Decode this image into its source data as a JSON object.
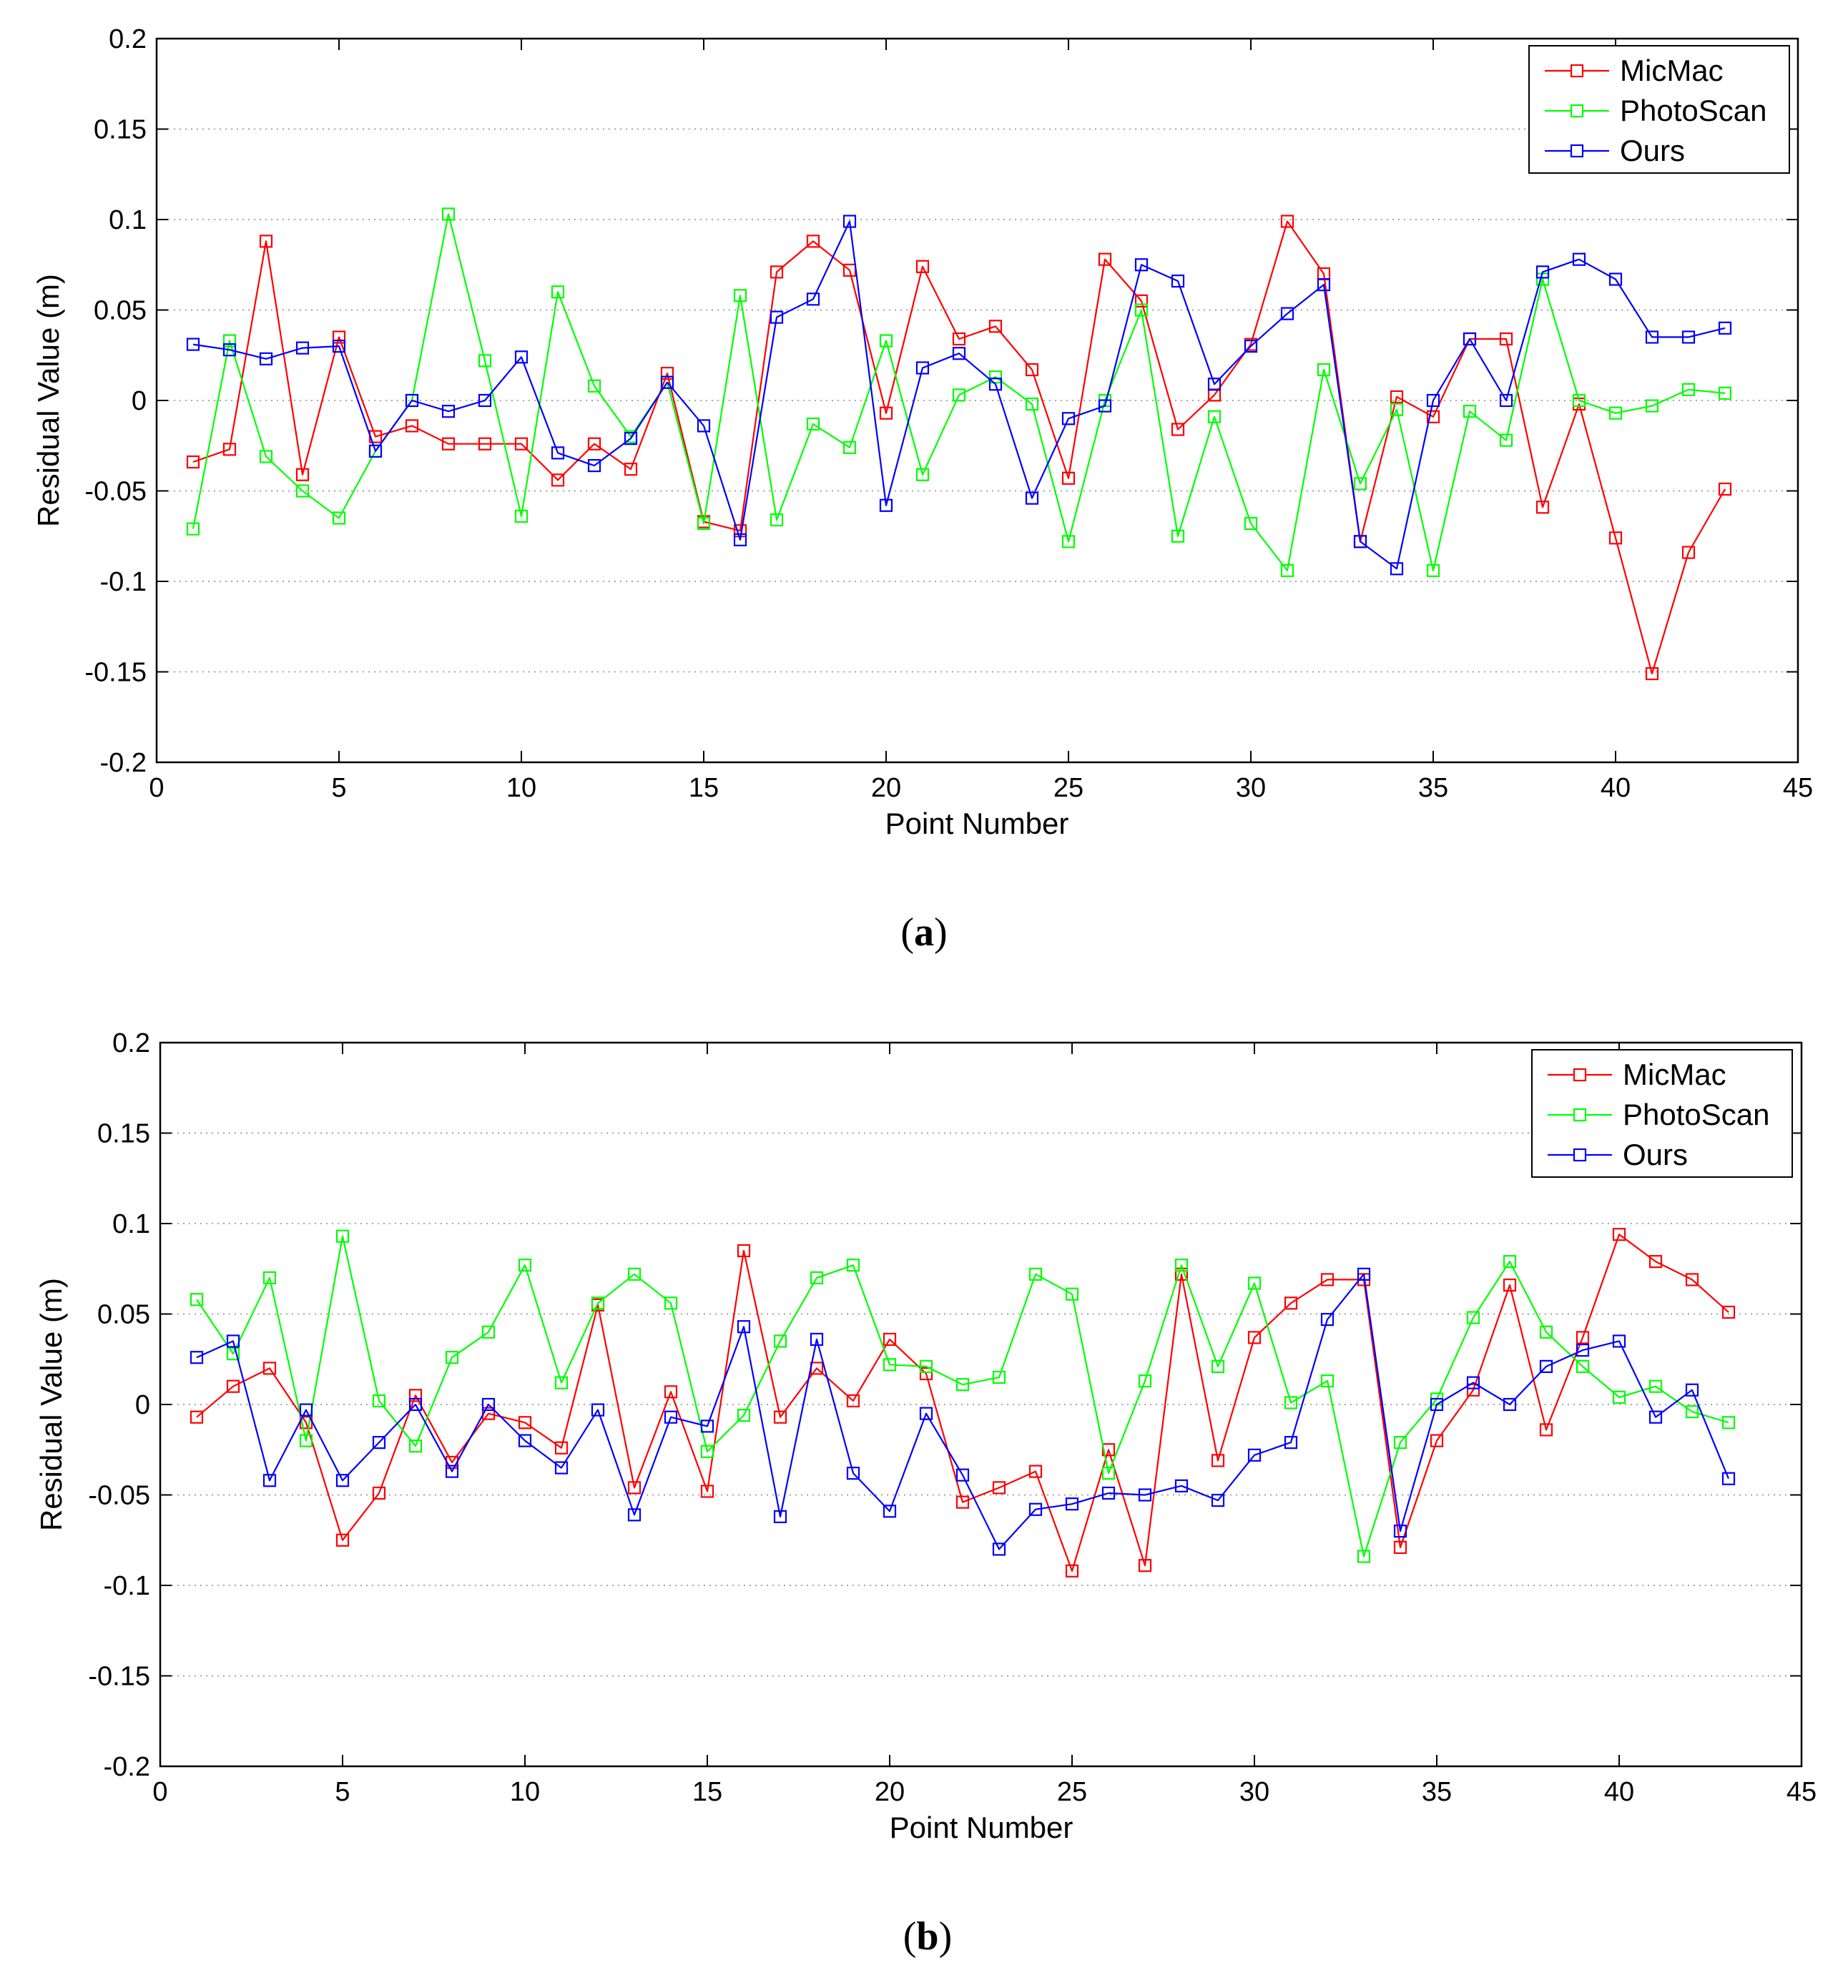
{
  "chart_data": [
    {
      "type": "line",
      "panel_label": "(a)",
      "caption_letter": "a",
      "xlabel": "Point Number",
      "ylabel": "Residual Value (m)",
      "xlim": [
        0,
        45
      ],
      "ylim": [
        -0.2,
        0.2
      ],
      "xticks": [
        0,
        5,
        10,
        15,
        20,
        25,
        30,
        35,
        40,
        45
      ],
      "yticks": [
        -0.2,
        -0.15,
        -0.1,
        -0.05,
        0,
        0.05,
        0.1,
        0.15,
        0.2
      ],
      "ytick_labels": [
        "-0.2",
        "-0.15",
        "-0.1",
        "-0.05",
        "0",
        "0.05",
        "0.1",
        "0.15",
        "0.2"
      ],
      "grid": "horizontal dotted",
      "legend_position": "top-right",
      "x": [
        1,
        2,
        3,
        4,
        5,
        6,
        7,
        8,
        9,
        10,
        11,
        12,
        13,
        14,
        15,
        16,
        17,
        18,
        19,
        20,
        21,
        22,
        23,
        24,
        25,
        26,
        27,
        28,
        29,
        30,
        31,
        32,
        33,
        34,
        35,
        36,
        37,
        38,
        39,
        40,
        41,
        42,
        43
      ],
      "series": [
        {
          "name": "MicMac",
          "color": "#ff0000",
          "values": [
            -0.034,
            -0.027,
            0.088,
            -0.041,
            0.035,
            -0.02,
            -0.014,
            -0.024,
            -0.024,
            -0.024,
            -0.044,
            -0.024,
            -0.038,
            0.015,
            -0.067,
            -0.072,
            0.071,
            0.088,
            0.072,
            -0.007,
            0.074,
            0.034,
            0.041,
            0.017,
            -0.043,
            0.078,
            0.055,
            -0.016,
            0.003,
            0.031,
            0.099,
            0.07,
            -0.078,
            0.002,
            -0.009,
            0.034,
            0.034,
            -0.059,
            -0.002,
            -0.076,
            -0.151,
            -0.084,
            -0.049
          ]
        },
        {
          "name": "PhotoScan",
          "color": "#00ff00",
          "values": [
            -0.071,
            0.033,
            -0.031,
            -0.05,
            -0.065,
            -0.028,
            0.0,
            0.103,
            0.022,
            -0.064,
            0.06,
            0.008,
            -0.02,
            0.01,
            -0.068,
            0.058,
            -0.066,
            -0.013,
            -0.026,
            0.033,
            -0.041,
            0.003,
            0.013,
            -0.002,
            -0.078,
            0.0,
            0.05,
            -0.075,
            -0.009,
            -0.068,
            -0.094,
            0.017,
            -0.046,
            -0.005,
            -0.094,
            -0.006,
            -0.022,
            0.067,
            0.0,
            -0.007,
            -0.003,
            0.006,
            0.004
          ]
        },
        {
          "name": "Ours",
          "color": "#0000ff",
          "values": [
            0.031,
            0.028,
            0.023,
            0.029,
            0.03,
            -0.028,
            0.0,
            -0.006,
            0.0,
            0.024,
            -0.029,
            -0.036,
            -0.021,
            0.01,
            -0.014,
            -0.077,
            0.046,
            0.056,
            0.099,
            -0.058,
            0.018,
            0.026,
            0.009,
            -0.054,
            -0.01,
            -0.003,
            0.075,
            0.066,
            0.009,
            0.03,
            0.048,
            0.064,
            -0.078,
            -0.093,
            0.0,
            0.034,
            0.0,
            0.071,
            0.078,
            0.067,
            0.035,
            0.035,
            0.04
          ]
        }
      ]
    },
    {
      "type": "line",
      "panel_label": "(b)",
      "caption_letter": "b",
      "xlabel": "Point Number",
      "ylabel": "Residual Value (m)",
      "xlim": [
        0,
        45
      ],
      "ylim": [
        -0.2,
        0.2
      ],
      "xticks": [
        0,
        5,
        10,
        15,
        20,
        25,
        30,
        35,
        40,
        45
      ],
      "yticks": [
        -0.2,
        -0.15,
        -0.1,
        -0.05,
        0,
        0.05,
        0.1,
        0.15,
        0.2
      ],
      "ytick_labels": [
        "-0.2",
        "-0.15",
        "-0.1",
        "-0.05",
        "0",
        "0.05",
        "0.1",
        "0.15",
        "0.2"
      ],
      "grid": "horizontal dotted",
      "legend_position": "top-right",
      "x": [
        1,
        2,
        3,
        4,
        5,
        6,
        7,
        8,
        9,
        10,
        11,
        12,
        13,
        14,
        15,
        16,
        17,
        18,
        19,
        20,
        21,
        22,
        23,
        24,
        25,
        26,
        27,
        28,
        29,
        30,
        31,
        32,
        33,
        34,
        35,
        36,
        37,
        38,
        39,
        40,
        41,
        42,
        43
      ],
      "series": [
        {
          "name": "MicMac",
          "color": "#ff0000",
          "values": [
            -0.007,
            0.01,
            0.02,
            -0.01,
            -0.075,
            -0.049,
            0.005,
            -0.032,
            -0.005,
            -0.01,
            -0.024,
            0.055,
            -0.046,
            0.007,
            -0.048,
            0.085,
            -0.007,
            0.02,
            0.002,
            0.036,
            0.017,
            -0.054,
            -0.046,
            -0.037,
            -0.092,
            -0.025,
            -0.089,
            0.072,
            -0.031,
            0.037,
            0.056,
            0.069,
            0.069,
            -0.079,
            -0.02,
            0.008,
            0.066,
            -0.014,
            0.037,
            0.094,
            0.079,
            0.069,
            0.051
          ]
        },
        {
          "name": "PhotoScan",
          "color": "#00ff00",
          "values": [
            0.058,
            0.028,
            0.07,
            -0.02,
            0.093,
            0.002,
            -0.023,
            0.026,
            0.04,
            0.077,
            0.012,
            0.056,
            0.072,
            0.056,
            -0.026,
            -0.006,
            0.035,
            0.07,
            0.077,
            0.022,
            0.021,
            0.011,
            0.015,
            0.072,
            0.061,
            -0.038,
            0.013,
            0.077,
            0.021,
            0.067,
            0.001,
            0.013,
            -0.084,
            -0.021,
            0.003,
            0.048,
            0.079,
            0.04,
            0.021,
            0.004,
            0.01,
            -0.004,
            -0.01
          ]
        },
        {
          "name": "Ours",
          "color": "#0000ff",
          "values": [
            0.026,
            0.035,
            -0.042,
            -0.003,
            -0.042,
            -0.021,
            0.0,
            -0.037,
            0.0,
            -0.02,
            -0.035,
            -0.003,
            -0.061,
            -0.007,
            -0.012,
            0.043,
            -0.062,
            0.036,
            -0.038,
            -0.059,
            -0.005,
            -0.039,
            -0.08,
            -0.058,
            -0.055,
            -0.049,
            -0.05,
            -0.045,
            -0.053,
            -0.028,
            -0.021,
            0.047,
            0.072,
            -0.07,
            0.0,
            0.012,
            0.0,
            0.021,
            0.03,
            0.035,
            -0.007,
            0.008,
            -0.041
          ]
        }
      ]
    }
  ]
}
